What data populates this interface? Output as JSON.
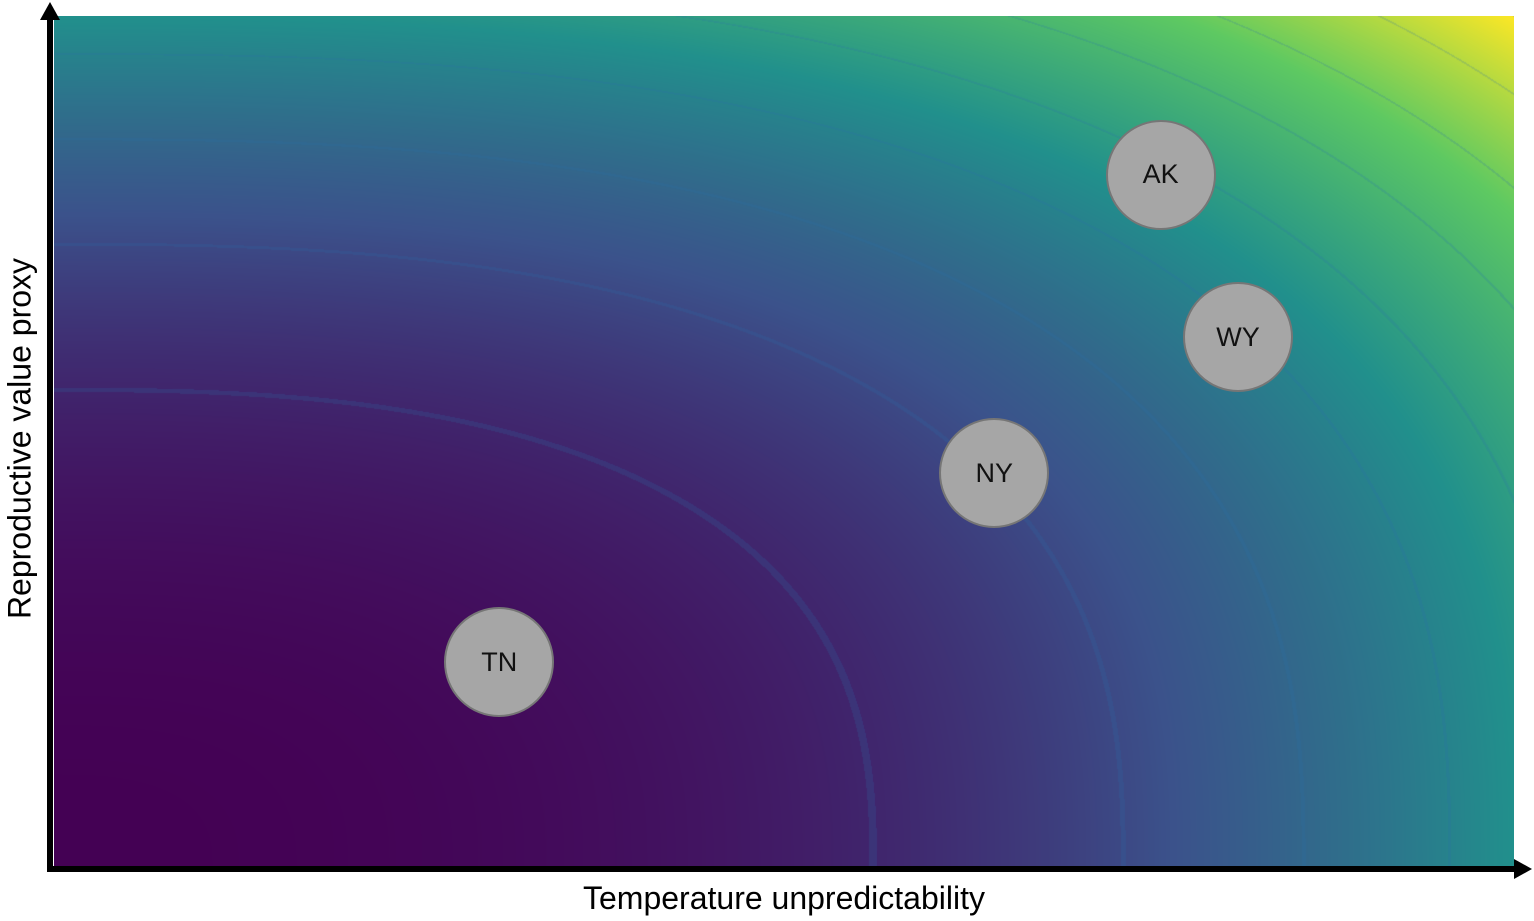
{
  "chart_data": {
    "type": "scatter",
    "title": "",
    "xlabel": "Temperature unpredictability",
    "ylabel": "Reproductive value proxy",
    "xlim": [
      0,
      1
    ],
    "ylim": [
      0,
      1
    ],
    "grid": false,
    "background": "viridis contour field increasing toward top-right",
    "colormap": [
      "#440154",
      "#3b528b",
      "#21908c",
      "#5ec962",
      "#fde725"
    ],
    "points": [
      {
        "label": "AK",
        "x": 0.758,
        "y": 0.813
      },
      {
        "label": "WY",
        "x": 0.811,
        "y": 0.622
      },
      {
        "label": "NY",
        "x": 0.644,
        "y": 0.462
      },
      {
        "label": "TN",
        "x": 0.305,
        "y": 0.24
      }
    ],
    "point_color": "#a6a6a6"
  }
}
